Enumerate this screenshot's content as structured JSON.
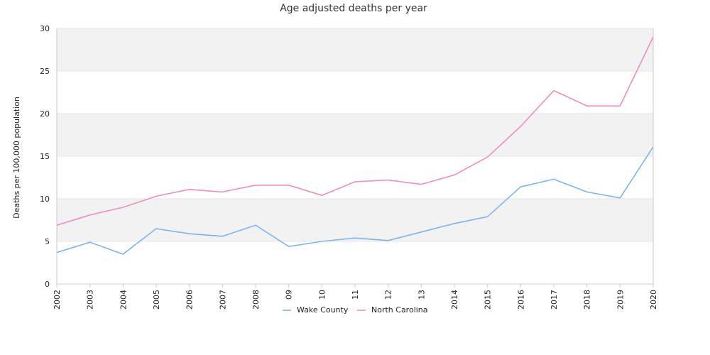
{
  "chart_data": {
    "type": "line",
    "title": "Age adjusted deaths per year",
    "ylabel": "Deaths per 100,000 population",
    "xlabel": "",
    "categories": [
      "2002",
      "2003",
      "2004",
      "2005",
      "2006",
      "2007",
      "2008",
      "09",
      "10",
      "11",
      "12",
      "13",
      "2014",
      "2015",
      "2016",
      "2017",
      "2018",
      "2019",
      "2020"
    ],
    "ylim": [
      0,
      30
    ],
    "yticks": [
      0,
      5,
      10,
      15,
      20,
      25,
      30
    ],
    "grid": "alternating horizontal bands",
    "legend_position": "bottom",
    "series": [
      {
        "name": "Wake County",
        "color": "#7cb5ec",
        "values": [
          3.7,
          4.9,
          3.5,
          6.5,
          5.9,
          5.6,
          6.9,
          4.4,
          5.0,
          5.4,
          5.1,
          6.1,
          7.1,
          7.9,
          11.4,
          12.3,
          10.8,
          10.1,
          16.1
        ]
      },
      {
        "name": "North Carolina",
        "color": "#f08cc0",
        "values": [
          6.9,
          8.1,
          9.0,
          10.3,
          11.1,
          10.8,
          11.6,
          11.6,
          10.4,
          12.0,
          12.2,
          11.7,
          12.8,
          14.9,
          18.5,
          22.7,
          20.9,
          20.9,
          29.0
        ]
      }
    ],
    "colors": {
      "band": "#f2f2f2",
      "gridline": "#e6e6e6",
      "axis": "#cccccc"
    }
  }
}
